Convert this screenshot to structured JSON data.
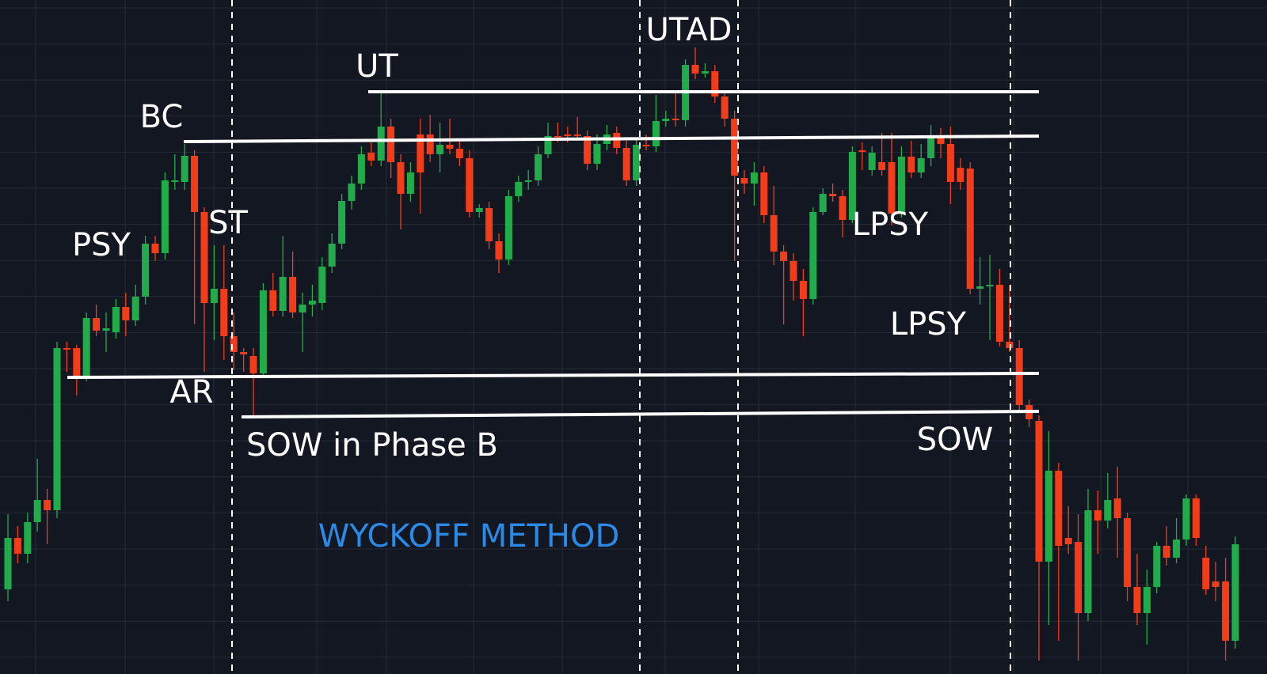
{
  "chart_data": {
    "type": "candlestick",
    "title": "WYCKOFF METHOD",
    "annotations": [
      "UTAD",
      "UT",
      "BC",
      "PSY",
      "ST",
      "AR",
      "SOW in Phase B",
      "LPSY",
      "LPSY",
      "SOW"
    ],
    "colors": {
      "up": "#22ab4a",
      "down": "#f23c1a"
    },
    "ylim": [
      0,
      852
    ],
    "ohlc": [
      [
        107,
        202,
        92,
        172
      ],
      [
        172,
        187,
        140,
        152
      ],
      [
        152,
        204,
        140,
        192
      ],
      [
        192,
        272,
        180,
        220
      ],
      [
        220,
        234,
        164,
        207
      ],
      [
        207,
        420,
        197,
        412
      ],
      [
        412,
        420,
        382,
        410
      ],
      [
        412,
        416,
        352,
        377
      ],
      [
        377,
        457,
        370,
        450
      ],
      [
        450,
        467,
        427,
        434
      ],
      [
        434,
        457,
        407,
        437
      ],
      [
        432,
        474,
        424,
        464
      ],
      [
        464,
        482,
        427,
        447
      ],
      [
        447,
        492,
        440,
        477
      ],
      [
        477,
        554,
        467,
        544
      ],
      [
        544,
        554,
        522,
        532
      ],
      [
        532,
        634,
        524,
        624
      ],
      [
        622,
        657,
        612,
        624
      ],
      [
        622,
        670,
        612,
        655
      ],
      [
        655,
        662,
        442,
        584
      ],
      [
        584,
        590,
        382,
        469
      ],
      [
        469,
        542,
        422,
        487
      ],
      [
        487,
        542,
        397,
        427
      ],
      [
        427,
        457,
        384,
        407
      ],
      [
        407,
        412,
        382,
        404
      ],
      [
        402,
        412,
        327,
        380
      ],
      [
        380,
        494,
        377,
        485
      ],
      [
        485,
        507,
        452,
        459
      ],
      [
        459,
        554,
        452,
        502
      ],
      [
        502,
        534,
        450,
        457
      ],
      [
        457,
        482,
        407,
        467
      ],
      [
        467,
        492,
        452,
        472
      ],
      [
        469,
        527,
        460,
        515
      ],
      [
        515,
        557,
        507,
        544
      ],
      [
        544,
        607,
        537,
        598
      ],
      [
        598,
        630,
        587,
        620
      ],
      [
        620,
        667,
        612,
        657
      ],
      [
        659,
        672,
        642,
        649
      ],
      [
        649,
        734,
        642,
        692
      ],
      [
        692,
        702,
        627,
        647
      ],
      [
        647,
        657,
        562,
        607
      ],
      [
        607,
        647,
        597,
        634
      ],
      [
        682,
        702,
        582,
        634
      ],
      [
        682,
        707,
        647,
        657
      ],
      [
        657,
        697,
        634,
        669
      ],
      [
        669,
        702,
        657,
        664
      ],
      [
        664,
        674,
        642,
        652
      ],
      [
        652,
        662,
        577,
        584
      ],
      [
        584,
        594,
        577,
        589
      ],
      [
        589,
        597,
        537,
        547
      ],
      [
        547,
        557,
        507,
        524
      ],
      [
        524,
        612,
        517,
        604
      ],
      [
        604,
        630,
        597,
        622
      ],
      [
        622,
        637,
        612,
        624
      ],
      [
        624,
        667,
        617,
        657
      ],
      [
        657,
        697,
        652,
        680
      ],
      [
        680,
        697,
        672,
        679
      ],
      [
        682,
        692,
        672,
        680
      ],
      [
        682,
        704,
        674,
        680
      ],
      [
        680,
        687,
        637,
        645
      ],
      [
        645,
        682,
        637,
        670
      ],
      [
        670,
        694,
        662,
        682
      ],
      [
        684,
        692,
        657,
        665
      ],
      [
        665,
        674,
        617,
        624
      ],
      [
        624,
        677,
        617,
        669
      ],
      [
        669,
        682,
        662,
        667
      ],
      [
        667,
        732,
        660,
        699
      ],
      [
        699,
        712,
        692,
        702
      ],
      [
        702,
        734,
        692,
        700
      ],
      [
        700,
        777,
        692,
        770
      ],
      [
        770,
        792,
        752,
        759
      ],
      [
        759,
        772,
        754,
        762
      ],
      [
        762,
        770,
        722,
        730
      ],
      [
        730,
        737,
        692,
        702
      ],
      [
        702,
        712,
        522,
        630
      ],
      [
        627,
        637,
        607,
        620
      ],
      [
        620,
        647,
        592,
        634
      ],
      [
        634,
        642,
        570,
        580
      ],
      [
        580,
        617,
        517,
        534
      ],
      [
        534,
        542,
        442,
        522
      ],
      [
        522,
        532,
        472,
        497
      ],
      [
        497,
        512,
        427,
        474
      ],
      [
        474,
        590,
        467,
        584
      ],
      [
        584,
        614,
        580,
        607
      ],
      [
        607,
        620,
        597,
        604
      ],
      [
        604,
        612,
        552,
        574
      ],
      [
        574,
        667,
        570,
        660
      ],
      [
        662,
        672,
        637,
        660
      ],
      [
        637,
        667,
        630,
        659
      ],
      [
        647,
        684,
        630,
        637
      ],
      [
        647,
        684,
        567,
        582
      ],
      [
        582,
        667,
        577,
        654
      ],
      [
        654,
        674,
        627,
        634
      ],
      [
        634,
        670,
        627,
        652
      ],
      [
        652,
        694,
        642,
        680
      ],
      [
        680,
        690,
        652,
        670
      ],
      [
        670,
        692,
        594,
        622
      ],
      [
        640,
        652,
        612,
        622
      ],
      [
        639,
        647,
        480,
        487
      ],
      [
        487,
        527,
        467,
        490
      ],
      [
        490,
        530,
        422,
        492
      ],
      [
        492,
        512,
        414,
        420
      ],
      [
        420,
        492,
        407,
        412
      ],
      [
        412,
        422,
        332,
        340
      ],
      [
        340,
        347,
        312,
        322
      ],
      [
        320,
        327,
        17,
        142
      ],
      [
        142,
        307,
        62,
        257
      ],
      [
        257,
        267,
        42,
        162
      ],
      [
        172,
        212,
        152,
        164
      ],
      [
        167,
        202,
        17,
        77
      ],
      [
        77,
        234,
        67,
        207
      ],
      [
        207,
        232,
        152,
        194
      ],
      [
        194,
        254,
        184,
        220
      ],
      [
        222,
        262,
        147,
        197
      ],
      [
        197,
        204,
        92,
        110
      ],
      [
        110,
        152,
        62,
        77
      ],
      [
        77,
        132,
        37,
        110
      ],
      [
        110,
        167,
        102,
        162
      ],
      [
        162,
        187,
        137,
        147
      ],
      [
        147,
        197,
        140,
        170
      ],
      [
        170,
        227,
        162,
        222
      ],
      [
        222,
        227,
        162,
        172
      ],
      [
        147,
        162,
        100,
        107
      ],
      [
        117,
        142,
        92,
        110
      ],
      [
        117,
        147,
        17,
        42
      ],
      [
        42,
        174,
        32,
        164
      ]
    ]
  }
}
